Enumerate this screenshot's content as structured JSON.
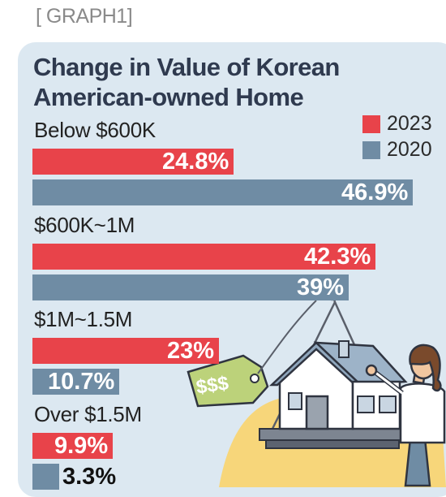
{
  "caption": "[ GRAPH1]",
  "colors": {
    "series_2023": "#e8434a",
    "series_2020": "#6f8ca4",
    "panel_bg": "#dce8f1",
    "title_text": "#2f3a4f"
  },
  "chart_data": {
    "type": "bar",
    "orientation": "horizontal",
    "title": "Change in Value of Korean American-owned Home",
    "categories": [
      "Below $600K",
      "$600K~1M",
      "$1M~1.5M",
      "Over $1.5M"
    ],
    "series": [
      {
        "name": "2023",
        "values": [
          24.8,
          42.3,
          23,
          9.9
        ],
        "labels": [
          "24.8%",
          "42.3%",
          "23%",
          "9.9%"
        ]
      },
      {
        "name": "2020",
        "values": [
          46.9,
          39,
          10.7,
          3.3
        ],
        "labels": [
          "46.9%",
          "39%",
          "10.7%",
          "3.3%"
        ]
      }
    ],
    "legend_position": "top-right",
    "unit": "%",
    "grid": false
  },
  "illustration": {
    "tag_text": "$$$",
    "icons": [
      "house-icon",
      "price-tag-icon",
      "crane-sling-icon",
      "woman-icon"
    ]
  }
}
